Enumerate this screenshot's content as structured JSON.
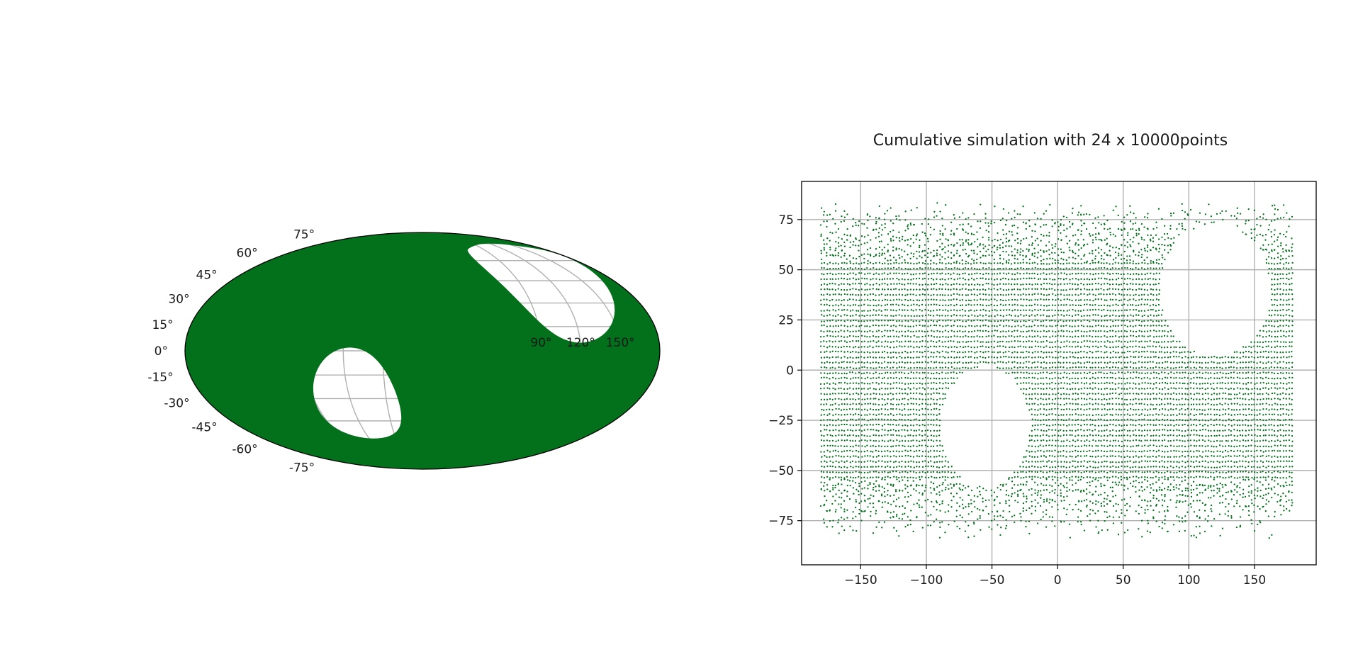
{
  "colors": {
    "points": "#03701b",
    "grid": "#b0b0b0",
    "background": "#ffffff"
  },
  "chart_data": [
    {
      "type": "scatter",
      "projection": "mollweide",
      "title": "",
      "xlabel": "",
      "ylabel": "",
      "grid": true,
      "lat_tick_labels": [
        "75°",
        "60°",
        "45°",
        "30°",
        "15°",
        "0°",
        "-15°",
        "-30°",
        "-45°",
        "-60°",
        "-75°"
      ],
      "lon_tick_labels": [
        "90°",
        "120°",
        "150°"
      ],
      "xlim": [
        -180,
        180
      ],
      "ylim": [
        -90,
        90
      ],
      "coverage": "points fill the whole sky except two empty regions",
      "empty_regions": [
        {
          "center": [
            -55,
            -28
          ],
          "radius_deg": 30
        },
        {
          "center": [
            120,
            40
          ],
          "radius_deg": 35
        }
      ],
      "point_color": "#03701b"
    },
    {
      "type": "scatter",
      "title": "Cumulative simulation with 24 x 10000points",
      "xlabel": "",
      "ylabel": "",
      "xlim": [
        -195,
        197
      ],
      "ylim": [
        -97,
        94
      ],
      "grid": true,
      "x_ticks": [
        -150,
        -100,
        -50,
        0,
        50,
        100,
        150
      ],
      "y_ticks": [
        75,
        50,
        25,
        0,
        -25,
        -50,
        -75
      ],
      "x_tick_labels": [
        "−150",
        "−100",
        "−50",
        "0",
        "50",
        "100",
        "150"
      ],
      "y_tick_labels": [
        "75",
        "50",
        "25",
        "0",
        "−25",
        "−50",
        "−75"
      ],
      "point_extent": {
        "lon": [
          -180,
          180
        ],
        "lat": [
          -88,
          88
        ]
      },
      "empty_regions": [
        {
          "center": [
            -55,
            -28
          ],
          "radius_x": 34,
          "radius_y": 30
        },
        {
          "center": [
            120,
            40
          ],
          "radius_x": 42,
          "radius_y": 33
        }
      ],
      "point_color": "#03701b"
    }
  ]
}
